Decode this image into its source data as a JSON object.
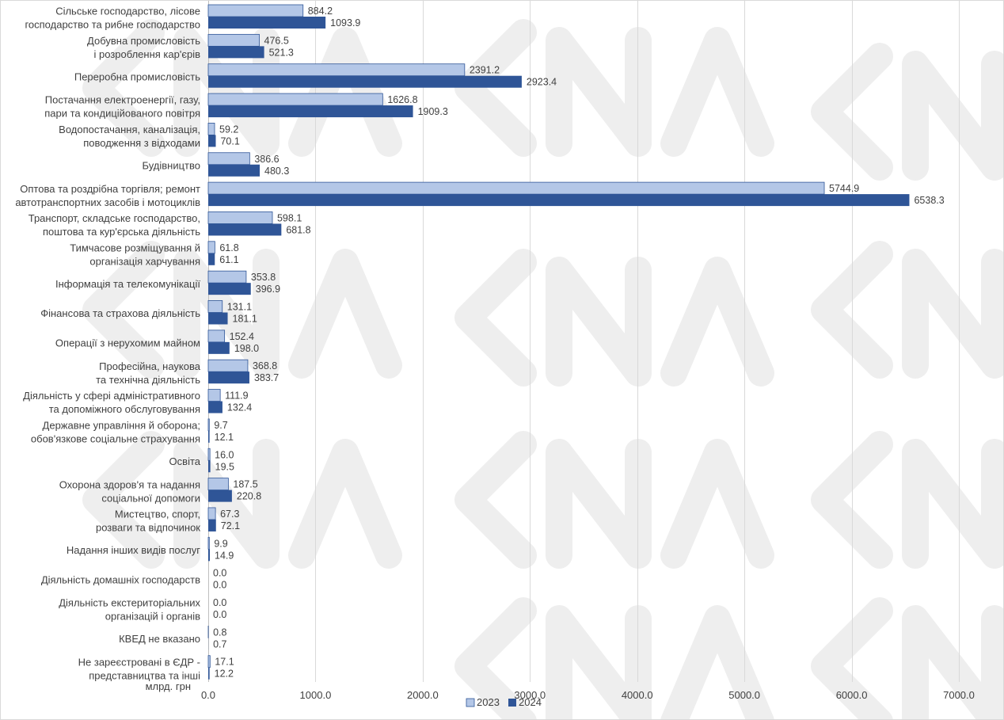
{
  "chart_data": {
    "type": "bar",
    "orientation": "horizontal",
    "unit": "млрд. грн",
    "categories": [
      [
        "Сільське господарство, лісове",
        "господарство та рибне господарство"
      ],
      [
        "Добувна промисловість",
        "і розроблення кар'єрів"
      ],
      [
        "Переробна промисловість"
      ],
      [
        "Постачання електроенергії, газу,",
        "пари та кондиційованого повітря"
      ],
      [
        "Водопостачання, каналізація,",
        "поводження з відходами"
      ],
      [
        "Будівництво"
      ],
      [
        "Оптова та роздрібна торгівля;  ремонт",
        "автотранспортних засобів і мотоциклів"
      ],
      [
        "Транспорт, складське господарство,",
        "поштова та кур'єрська діяльність"
      ],
      [
        "Тимчасове розміщування й",
        "організація харчування"
      ],
      [
        "Інформація та телекомунікації"
      ],
      [
        "Фінансова та страхова діяльність"
      ],
      [
        "Операції з нерухомим майном"
      ],
      [
        "Професійна, наукова",
        "та технічна діяльність"
      ],
      [
        "Діяльність у сфері адміністративного",
        "та допоміжного обслуговування"
      ],
      [
        "Державне управління й оборона;",
        "обов'язкове соціальне страхування"
      ],
      [
        "Освіта"
      ],
      [
        "Охорона здоров'я та надання",
        "соціальної допомоги"
      ],
      [
        "Мистецтво, спорт,",
        "розваги та відпочинок"
      ],
      [
        "Надання інших видів послуг"
      ],
      [
        "Діяльність домашніх господарств"
      ],
      [
        "Діяльність екстериторіальних",
        "організацій і органів"
      ],
      [
        "КВЕД не вказано"
      ],
      [
        "Не зареєстровані в ЄДР -",
        "представництва та інші"
      ]
    ],
    "series": [
      {
        "name": "2023",
        "color": "#b4c7e7",
        "values": [
          884.2,
          476.5,
          2391.2,
          1626.8,
          59.2,
          386.6,
          5744.9,
          598.1,
          61.8,
          353.8,
          131.1,
          152.4,
          368.8,
          111.9,
          9.7,
          16.0,
          187.5,
          67.3,
          9.9,
          0.0,
          0.0,
          0.8,
          17.1
        ],
        "labels": [
          "884.2",
          "476.5",
          "2391.2",
          "1626.8",
          "59.2",
          "386.6",
          "5744.9",
          "598.1",
          "61.8",
          "353.8",
          "131.1",
          "152.4",
          "368.8",
          "111.9",
          "9.7",
          "16.0",
          "187.5",
          "67.3",
          "9.9",
          "0.0",
          "0.0",
          "0.8",
          "17.1"
        ]
      },
      {
        "name": "2024",
        "color": "#2f5597",
        "values": [
          1093.9,
          521.3,
          2923.4,
          1909.3,
          70.1,
          480.3,
          6538.3,
          681.8,
          61.1,
          396.9,
          181.1,
          198.0,
          383.7,
          132.4,
          12.1,
          19.5,
          220.8,
          72.1,
          14.9,
          0.0,
          0.0,
          0.7,
          12.2
        ],
        "labels": [
          "1093.9",
          "521.3",
          "2923.4",
          "1909.3",
          "70.1",
          "480.3",
          "6538.3",
          "681.8",
          "61.1",
          "396.9",
          "181.1",
          "198.0",
          "383.7",
          "132.4",
          "12.1",
          "19.5",
          "220.8",
          "72.1",
          "14.9",
          "0.0",
          "0.0",
          "0.7",
          "12.2"
        ]
      }
    ],
    "xlim": [
      0,
      7000
    ],
    "xticks": [
      "0.0",
      "1000.0",
      "2000.0",
      "3000.0",
      "4000.0",
      "5000.0",
      "6000.0",
      "7000.0"
    ],
    "grid": true,
    "legend_position": "bottom"
  },
  "watermark": {
    "text": "CNA",
    "color": "#eeeeee"
  }
}
